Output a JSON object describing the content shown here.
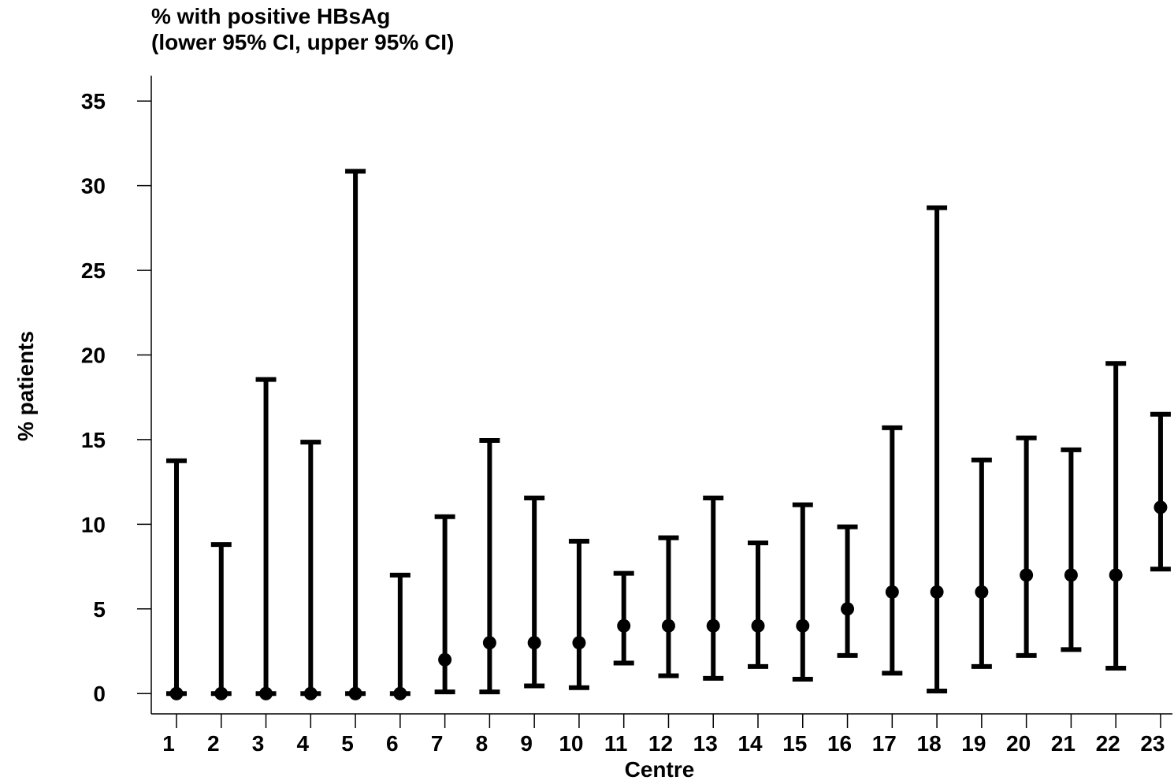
{
  "chart_data": {
    "type": "errorbar",
    "title": [
      "% with positive HBsAg",
      "(lower 95% CI, upper 95% CI)"
    ],
    "xlabel": "Centre",
    "ylabel": "% patients",
    "ylim": [
      -1.2,
      36.5
    ],
    "yticks": [
      0,
      5,
      10,
      15,
      20,
      25,
      30,
      35
    ],
    "grid": false,
    "categories": [
      "1",
      "2",
      "3",
      "4",
      "5",
      "6",
      "7",
      "8",
      "9",
      "10",
      "11",
      "12",
      "13",
      "14",
      "15",
      "16",
      "17",
      "18",
      "19",
      "20",
      "21",
      "22",
      "23"
    ],
    "values": [
      0,
      0,
      0,
      0,
      0,
      0,
      2,
      3,
      3,
      3,
      4,
      4,
      4,
      4,
      4,
      5,
      6,
      6,
      6,
      7,
      7,
      7,
      11
    ],
    "lower": [
      0,
      0,
      0,
      0,
      0,
      0,
      0.1,
      0.1,
      0.45,
      0.35,
      1.8,
      1.05,
      0.9,
      1.6,
      0.85,
      2.25,
      1.2,
      0.15,
      1.6,
      2.25,
      2.6,
      1.5,
      7.35
    ],
    "upper": [
      13.75,
      8.8,
      18.55,
      14.85,
      30.85,
      7.0,
      10.45,
      14.95,
      11.55,
      9.0,
      7.1,
      9.2,
      11.55,
      8.9,
      11.15,
      9.85,
      15.7,
      28.7,
      13.8,
      15.1,
      14.4,
      19.5,
      16.5
    ]
  }
}
